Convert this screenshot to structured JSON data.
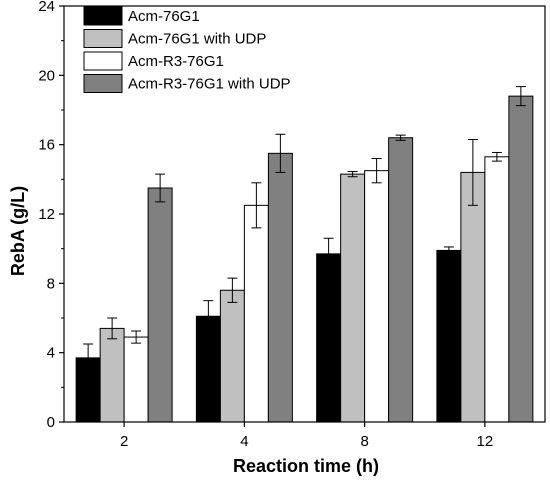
{
  "chart_data": {
    "type": "bar",
    "title": "",
    "xlabel": "Reaction time (h)",
    "ylabel": "RebA (g/L)",
    "categories": [
      "2",
      "4",
      "8",
      "12"
    ],
    "ylim": [
      0,
      24
    ],
    "yticks": [
      0,
      4,
      8,
      12,
      16,
      20,
      24
    ],
    "grid": false,
    "legend_position": "top-left",
    "error_bars": true,
    "series": [
      {
        "name": "Acm-76G1",
        "color": "#000000",
        "values": [
          3.7,
          6.1,
          9.7,
          9.9
        ],
        "errors": [
          0.8,
          0.9,
          0.9,
          0.2
        ]
      },
      {
        "name": "Acm-76G1  with UDP",
        "color": "#c0c0c0",
        "values": [
          5.4,
          7.6,
          14.3,
          14.4
        ],
        "errors": [
          0.6,
          0.7,
          0.15,
          1.9
        ]
      },
      {
        "name": "Acm-R3-76G1",
        "color": "#ffffff",
        "values": [
          4.9,
          12.5,
          14.5,
          15.3
        ],
        "errors": [
          0.35,
          1.3,
          0.7,
          0.25
        ]
      },
      {
        "name": "Acm-R3-76G1 with UDP",
        "color": "#808080",
        "values": [
          13.5,
          15.5,
          16.4,
          18.8
        ],
        "errors": [
          0.8,
          1.1,
          0.15,
          0.55
        ]
      }
    ]
  }
}
